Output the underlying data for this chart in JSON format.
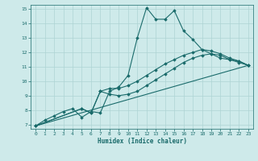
{
  "xlabel": "Humidex (Indice chaleur)",
  "bg_color": "#ceeaea",
  "line_color": "#1a6b6b",
  "grid_color": "#add4d4",
  "xlim": [
    -0.5,
    23.5
  ],
  "ylim": [
    6.7,
    15.3
  ],
  "xticks": [
    0,
    1,
    2,
    3,
    4,
    5,
    6,
    7,
    8,
    9,
    10,
    11,
    12,
    13,
    14,
    15,
    16,
    17,
    18,
    19,
    20,
    21,
    22,
    23
  ],
  "yticks": [
    7,
    8,
    9,
    10,
    11,
    12,
    13,
    14,
    15
  ],
  "line1_x": [
    0,
    1,
    2,
    3,
    4,
    5,
    6,
    7,
    8,
    9,
    10,
    11,
    12,
    13,
    14,
    15,
    16,
    17,
    18,
    19,
    20,
    21,
    22,
    23
  ],
  "line1_y": [
    6.9,
    7.3,
    7.6,
    7.9,
    8.1,
    7.5,
    7.9,
    7.8,
    9.3,
    9.6,
    10.4,
    13.0,
    15.1,
    14.3,
    14.3,
    14.9,
    13.5,
    12.9,
    12.2,
    11.9,
    11.6,
    11.5,
    11.4,
    11.1
  ],
  "line2_x": [
    0,
    5,
    6,
    7,
    8,
    9,
    10,
    11,
    12,
    13,
    14,
    15,
    16,
    17,
    18,
    19,
    20,
    21,
    22,
    23
  ],
  "line2_y": [
    6.9,
    8.1,
    7.8,
    9.3,
    9.5,
    9.5,
    9.7,
    10.0,
    10.4,
    10.8,
    11.2,
    11.5,
    11.8,
    12.0,
    12.2,
    12.1,
    11.9,
    11.6,
    11.4,
    11.1
  ],
  "line3_x": [
    0,
    5,
    6,
    7,
    8,
    9,
    10,
    11,
    12,
    13,
    14,
    15,
    16,
    17,
    18,
    19,
    20,
    21,
    22,
    23
  ],
  "line3_y": [
    6.9,
    8.1,
    7.8,
    9.3,
    9.1,
    9.0,
    9.1,
    9.3,
    9.7,
    10.1,
    10.5,
    10.9,
    11.3,
    11.6,
    11.8,
    11.9,
    11.8,
    11.5,
    11.3,
    11.1
  ],
  "line4_x": [
    0,
    23
  ],
  "line4_y": [
    6.9,
    11.1
  ]
}
